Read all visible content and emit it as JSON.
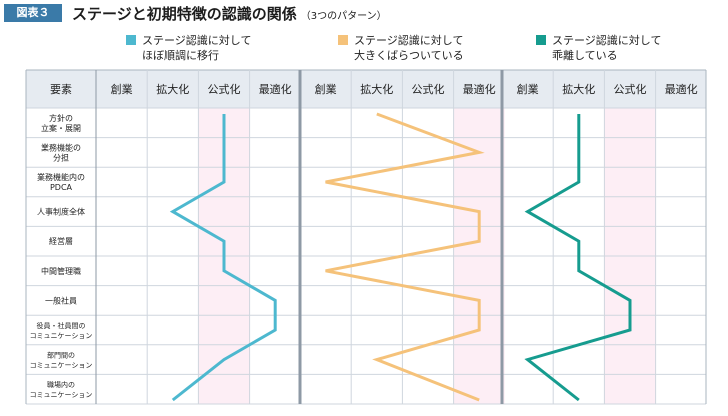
{
  "figure_label": "図表３",
  "title": "ステージと初期特徴の認識の関係",
  "subtitle": "（3つのパターン）",
  "colors": {
    "badge": "#3a7aa8",
    "blue": "#4db8cf",
    "orange": "#f5c27a",
    "green": "#169c8f",
    "highlight": "#fdeef5",
    "header": "#e6ebf1"
  },
  "chart_data": {
    "type": "line",
    "header_label": "要素",
    "stages": [
      "創業",
      "拡大化",
      "公式化",
      "最適化"
    ],
    "rows": [
      {
        "line1": "方針の",
        "line2": "立案・展開"
      },
      {
        "line1": "業務機能の",
        "line2": "分担"
      },
      {
        "line1": "業務機能内の",
        "line2": "PDCA"
      },
      {
        "line1": "人事制度全体",
        "line2": ""
      },
      {
        "line1": "経営層",
        "line2": ""
      },
      {
        "line1": "中間管理職",
        "line2": ""
      },
      {
        "line1": "一般社員",
        "line2": ""
      },
      {
        "line1": "役員・社員間の",
        "line2": "コミュニケーション"
      },
      {
        "line1": "部門間の",
        "line2": "コミュニケーション"
      },
      {
        "line1": "職場内の",
        "line2": "コミュニケーション"
      }
    ],
    "series": [
      {
        "name": "ステージ認識に対して ほぼ順調に移行",
        "legend_line1": "ステージ認識に対して",
        "legend_line2": "ほぼ順調に移行",
        "color": "#4db8cf",
        "highlight_stage": 2,
        "values": [
          2.5,
          2.5,
          2.5,
          1.5,
          2.5,
          2.5,
          3.5,
          3.5,
          2.5,
          1.5
        ]
      },
      {
        "name": "ステージ認識に対して 大きくばらついている",
        "legend_line1": "ステージ認識に対して",
        "legend_line2": "大きくばらついている",
        "color": "#f5c27a",
        "highlight_stage": 3,
        "values": [
          1.5,
          3.5,
          0.5,
          3.5,
          3.5,
          0.5,
          3.5,
          3.5,
          1.5,
          3.5
        ]
      },
      {
        "name": "ステージ認識に対して 乖離している",
        "legend_line1": "ステージ認識に対して",
        "legend_line2": "乖離している",
        "color": "#169c8f",
        "highlight_stage": 2,
        "values": [
          1.5,
          1.5,
          1.5,
          0.5,
          1.5,
          1.5,
          2.5,
          2.5,
          0.5,
          1.5
        ]
      }
    ]
  }
}
